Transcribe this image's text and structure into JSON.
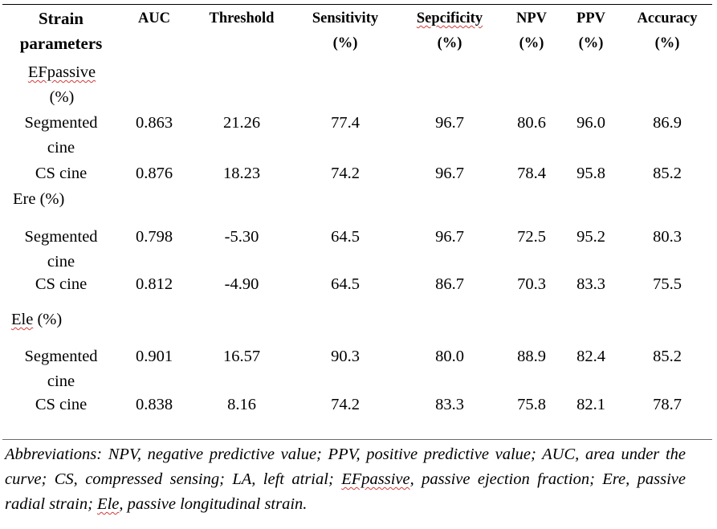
{
  "headers": [
    {
      "key": "strain",
      "line1": "Strain",
      "line2": "parameters"
    },
    {
      "key": "auc",
      "line1": "AUC",
      "line2": ""
    },
    {
      "key": "threshold",
      "line1": "Threshold",
      "line2": ""
    },
    {
      "key": "sensitivity",
      "line1": "Sensitivity",
      "line2": "(%)"
    },
    {
      "key": "specificity",
      "line1": "Sepcificity",
      "line2": "(%)"
    },
    {
      "key": "npv",
      "line1": "NPV",
      "line2": "(%)"
    },
    {
      "key": "ppv",
      "line1": "PPV",
      "line2": "(%)"
    },
    {
      "key": "accuracy",
      "line1": "Accuracy",
      "line2": "(%)"
    }
  ],
  "groups": [
    {
      "label_line1": "EFpassive",
      "label_line2": "(%)",
      "rows": [
        {
          "method_line1": "Segmented",
          "method_line2": "cine",
          "auc": "0.863",
          "threshold": "21.26",
          "sensitivity": "77.4",
          "specificity": "96.7",
          "npv": "80.6",
          "ppv": "96.0",
          "accuracy": "86.9"
        },
        {
          "method_line1": "CS cine",
          "method_line2": "",
          "auc": "0.876",
          "threshold": "18.23",
          "sensitivity": "74.2",
          "specificity": "96.7",
          "npv": "78.4",
          "ppv": "95.8",
          "accuracy": "85.2"
        }
      ]
    },
    {
      "label_line1": "Ere (%)",
      "label_line2": "",
      "rows": [
        {
          "method_line1": "Segmented",
          "method_line2": "cine",
          "auc": "0.798",
          "threshold": "-5.30",
          "sensitivity": "64.5",
          "specificity": "96.7",
          "npv": "72.5",
          "ppv": "95.2",
          "accuracy": "80.3"
        },
        {
          "method_line1": "CS cine",
          "method_line2": "",
          "auc": "0.812",
          "threshold": "-4.90",
          "sensitivity": "64.5",
          "specificity": "86.7",
          "npv": "70.3",
          "ppv": "83.3",
          "accuracy": "75.5"
        }
      ]
    },
    {
      "label_line1": "Ele",
      "label_line1_suffix": " (%)",
      "label_line2": "",
      "rows": [
        {
          "method_line1": "Segmented",
          "method_line2": "cine",
          "auc": "0.901",
          "threshold": "16.57",
          "sensitivity": "90.3",
          "specificity": "80.0",
          "npv": "88.9",
          "ppv": "82.4",
          "accuracy": "85.2"
        },
        {
          "method_line1": "CS cine",
          "method_line2": "",
          "auc": "0.838",
          "threshold": "8.16",
          "sensitivity": "74.2",
          "specificity": "83.3",
          "npv": "75.8",
          "ppv": "82.1",
          "accuracy": "78.7"
        }
      ]
    }
  ],
  "footnote": {
    "part1": "Abbreviations: NPV, negative predictive value; PPV, positive predictive value; AUC, area under the curve; CS, compressed sensing; LA, left atrial; ",
    "term_efpassive": "EFpassive",
    "part2": ", passive ejection fraction; Ere, passive radial strain; ",
    "term_ele": "Ele",
    "part3": ", passive longitudinal strain."
  }
}
